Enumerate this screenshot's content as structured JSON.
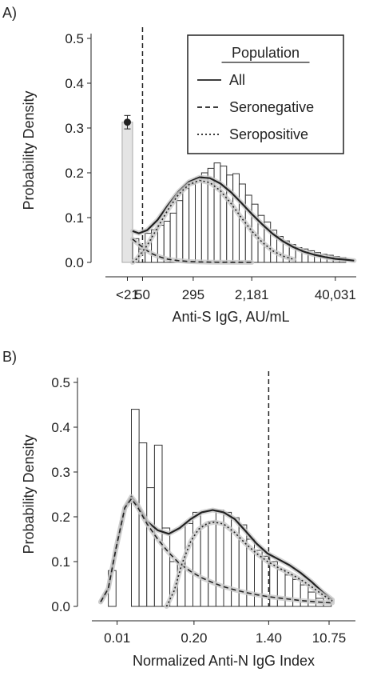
{
  "chart_data": [
    {
      "panel_label": "A)",
      "type": "histogram",
      "xlabel": "Anti-S IgG, AU/mL",
      "ylabel": "Probability Density",
      "xlim": [
        0,
        24
      ],
      "ylim": [
        0,
        0.5
      ],
      "y_ticks": [
        "0.0",
        "0.1",
        "0.2",
        "0.3",
        "0.4",
        "0.5"
      ],
      "x_ticks": [
        {
          "label": "<21",
          "at": 2.1
        },
        {
          "label": "50",
          "at": 3.55
        },
        {
          "label": "295",
          "at": 8.4
        },
        {
          "label": "2,181",
          "at": 14.0
        },
        {
          "label": "40,031",
          "at": 22.0
        }
      ],
      "reference_line_x": 3.55,
      "below_detection_bar": {
        "x0": 1.6,
        "x1": 2.6,
        "height": 0.313,
        "error": [
          0.298,
          0.328
        ]
      },
      "bins": {
        "start": 2.6,
        "width": 0.6,
        "heights": [
          0.053,
          0.03,
          0.065,
          0.073,
          0.083,
          0.092,
          0.11,
          0.138,
          0.165,
          0.175,
          0.188,
          0.2,
          0.21,
          0.222,
          0.215,
          0.195,
          0.198,
          0.175,
          0.15,
          0.13,
          0.105,
          0.09,
          0.072,
          0.058,
          0.048,
          0.04,
          0.033,
          0.03,
          0.026,
          0.022,
          0.018,
          0.016,
          0.013,
          0.011
        ]
      },
      "legend": {
        "title": "Population",
        "position": "top-right",
        "entries": [
          "All",
          "Seronegative",
          "Seropositive"
        ]
      },
      "series": [
        {
          "name": "All",
          "line": "solid",
          "x": [
            2.6,
            3.2,
            4.0,
            5.0,
            6.0,
            7.0,
            8.0,
            9.0,
            10.0,
            11.0,
            12.0,
            13.0,
            14.0,
            15.0,
            16.0,
            17.0,
            18.0,
            19.0,
            20.0,
            21.0,
            22.0,
            23.0,
            23.8
          ],
          "y": [
            0.07,
            0.065,
            0.072,
            0.095,
            0.128,
            0.158,
            0.18,
            0.19,
            0.188,
            0.176,
            0.157,
            0.133,
            0.108,
            0.085,
            0.064,
            0.047,
            0.034,
            0.024,
            0.017,
            0.012,
            0.008,
            0.006,
            0.004
          ]
        },
        {
          "name": "Seronegative",
          "line": "dashed",
          "x": [
            2.6,
            3.0,
            3.5,
            4.0,
            4.5,
            5.0,
            5.5,
            6.0,
            7.0,
            8.0,
            9.0,
            10.0,
            12.0,
            14.0
          ],
          "y": [
            0.052,
            0.044,
            0.035,
            0.026,
            0.019,
            0.014,
            0.01,
            0.007,
            0.004,
            0.002,
            0.001,
            0.0005,
            0.0002,
            0.0
          ]
        },
        {
          "name": "Seropositive",
          "line": "dotted",
          "x": [
            2.6,
            3.0,
            4.0,
            5.0,
            6.0,
            7.0,
            8.0,
            9.0,
            10.0,
            11.0,
            12.0,
            13.0,
            14.0,
            15.0,
            16.0,
            17.0,
            18.0
          ],
          "y": [
            0.0,
            0.008,
            0.038,
            0.078,
            0.118,
            0.152,
            0.174,
            0.183,
            0.178,
            0.16,
            0.132,
            0.1,
            0.07,
            0.045,
            0.026,
            0.014,
            0.007
          ]
        }
      ]
    },
    {
      "panel_label": "B)",
      "type": "histogram",
      "xlabel": "Normalized Anti-N IgG Index",
      "ylabel": "Probability Density",
      "xlim": [
        0,
        24
      ],
      "ylim": [
        0,
        0.5
      ],
      "y_ticks": [
        "0.0",
        "0.1",
        "0.2",
        "0.3",
        "0.4",
        "0.5"
      ],
      "x_ticks": [
        {
          "label": "0.01",
          "at": 2.3
        },
        {
          "label": "0.20",
          "at": 9.3
        },
        {
          "label": "1.40",
          "at": 16.1
        },
        {
          "label": "10.75",
          "at": 21.6
        }
      ],
      "reference_line_x": 16.1,
      "bins": {
        "start": 1.5,
        "width": 0.7,
        "heights": [
          0.08,
          0.0,
          0.0,
          0.44,
          0.365,
          0.265,
          0.36,
          0.175,
          0.1,
          0.095,
          0.185,
          0.21,
          0.18,
          0.19,
          0.215,
          0.21,
          0.198,
          0.182,
          0.15,
          0.125,
          0.112,
          0.1,
          0.082,
          0.07,
          0.06,
          0.048,
          0.032,
          0.018,
          0.008
        ]
      },
      "series": [
        {
          "name": "All",
          "line": "solid",
          "x": [
            0.8,
            1.5,
            2.2,
            3.0,
            3.6,
            4.2,
            5.0,
            6.0,
            7.0,
            8.0,
            9.0,
            10.0,
            11.0,
            12.0,
            13.0,
            14.0,
            15.0,
            16.0,
            17.0,
            18.0,
            19.0,
            20.0,
            21.0,
            21.9
          ],
          "y": [
            0.01,
            0.04,
            0.13,
            0.22,
            0.245,
            0.225,
            0.19,
            0.17,
            0.162,
            0.175,
            0.195,
            0.21,
            0.215,
            0.21,
            0.195,
            0.168,
            0.14,
            0.118,
            0.105,
            0.092,
            0.075,
            0.055,
            0.032,
            0.015
          ]
        },
        {
          "name": "Seronegative",
          "line": "dashed",
          "x": [
            0.8,
            1.5,
            2.2,
            3.0,
            3.6,
            4.2,
            5.0,
            6.0,
            7.0,
            8.0,
            9.0,
            10.0,
            11.0,
            12.0,
            13.0,
            14.0,
            15.0,
            16.0,
            17.0,
            18.0,
            19.0,
            20.0,
            21.0,
            21.9
          ],
          "y": [
            0.01,
            0.04,
            0.13,
            0.22,
            0.24,
            0.22,
            0.185,
            0.15,
            0.12,
            0.095,
            0.078,
            0.064,
            0.053,
            0.044,
            0.037,
            0.031,
            0.026,
            0.022,
            0.019,
            0.016,
            0.013,
            0.011,
            0.009,
            0.008
          ]
        },
        {
          "name": "Seropositive",
          "line": "dotted",
          "x": [
            6.8,
            7.5,
            8.2,
            9.0,
            9.7,
            10.5,
            11.2,
            12.0,
            13.0,
            14.0,
            15.0,
            16.0,
            17.0,
            18.0,
            19.0,
            20.0,
            21.0,
            21.9
          ],
          "y": [
            0.0,
            0.035,
            0.095,
            0.145,
            0.172,
            0.185,
            0.188,
            0.184,
            0.165,
            0.14,
            0.118,
            0.1,
            0.086,
            0.074,
            0.06,
            0.044,
            0.026,
            0.012
          ]
        }
      ]
    }
  ]
}
